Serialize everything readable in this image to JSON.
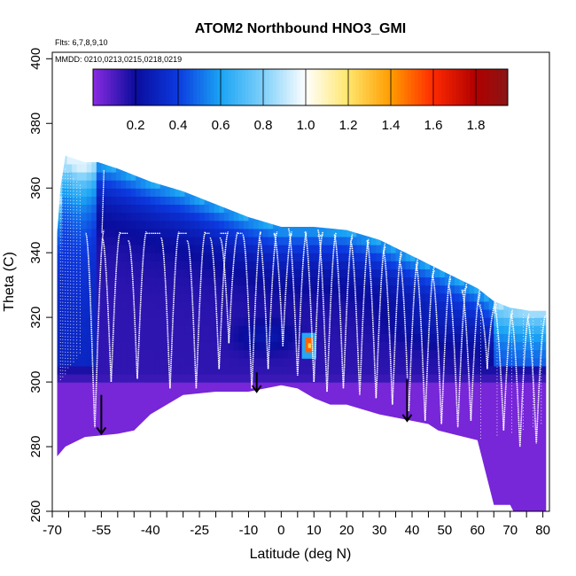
{
  "chart_data": {
    "type": "heatmap",
    "title": "ATOM2 Northbound HNO3_GMI",
    "flights_label": "Flts: 6,7,8,9,10",
    "dates_label": "MMDD: 0210,0213,0215,0218,0219",
    "xlabel": "Latitude (deg N)",
    "ylabel": "Theta (C)",
    "xlim": [
      -70,
      82
    ],
    "ylim": [
      260,
      402
    ],
    "x_ticks": [
      -70,
      -55,
      -40,
      -25,
      -10,
      0,
      10,
      20,
      30,
      40,
      50,
      60,
      70,
      80
    ],
    "x_tick_labels": [
      "-70",
      "-55",
      "-40",
      "-25",
      "-10",
      "0",
      "10",
      "20",
      "30",
      "40",
      "50",
      "60",
      "70",
      "80"
    ],
    "x_minor_ticks": [
      -65,
      -60,
      -50,
      -45,
      -35,
      -30,
      -20,
      -15,
      -5,
      5,
      15,
      25,
      35,
      45,
      55,
      65,
      75
    ],
    "y_ticks": [
      260,
      280,
      300,
      320,
      340,
      360,
      380,
      400
    ],
    "y_tick_labels": [
      "260",
      "280",
      "300",
      "320",
      "340",
      "360",
      "380",
      "400"
    ],
    "colorbar": {
      "range": [
        0,
        1.95
      ],
      "ticks": [
        0.2,
        0.4,
        0.6,
        0.8,
        1.0,
        1.2,
        1.4,
        1.6,
        1.8
      ],
      "tick_labels": [
        "0.2",
        "0.4",
        "0.6",
        "0.8",
        "1.0",
        "1.2",
        "1.4",
        "1.6",
        "1.8"
      ],
      "stops": [
        {
          "v": 0.0,
          "c": "#8a2be2"
        },
        {
          "v": 0.2,
          "c": "#0a0c9c"
        },
        {
          "v": 0.4,
          "c": "#0c3ae0"
        },
        {
          "v": 0.6,
          "c": "#1aa4f4"
        },
        {
          "v": 0.8,
          "c": "#7fd0fa"
        },
        {
          "v": 1.0,
          "c": "#ffffff"
        },
        {
          "v": 1.2,
          "c": "#ffe66b"
        },
        {
          "v": 1.4,
          "c": "#ff9c00"
        },
        {
          "v": 1.6,
          "c": "#ff2a00"
        },
        {
          "v": 1.8,
          "c": "#b00000"
        },
        {
          "v": 1.95,
          "c": "#8a1515"
        }
      ]
    },
    "domain_top": [
      [
        -68.5,
        346
      ],
      [
        -67.5,
        360
      ],
      [
        -66,
        370
      ],
      [
        -63,
        369
      ],
      [
        -60,
        368
      ],
      [
        -56,
        368
      ],
      [
        -50,
        366
      ],
      [
        -45,
        364
      ],
      [
        -40,
        362
      ],
      [
        -30,
        359
      ],
      [
        -20,
        355
      ],
      [
        -10,
        351
      ],
      [
        0,
        348
      ],
      [
        10,
        348
      ],
      [
        20,
        347
      ],
      [
        30,
        344
      ],
      [
        40,
        339
      ],
      [
        50,
        334
      ],
      [
        60,
        329
      ],
      [
        65,
        325
      ],
      [
        70,
        323
      ],
      [
        76,
        322
      ],
      [
        81,
        322
      ]
    ],
    "domain_bottom": [
      [
        -68.5,
        277
      ],
      [
        -66,
        280
      ],
      [
        -60,
        283
      ],
      [
        -50,
        284
      ],
      [
        -45,
        285
      ],
      [
        -40,
        290
      ],
      [
        -30,
        296
      ],
      [
        -20,
        297
      ],
      [
        -10,
        297
      ],
      [
        0,
        299
      ],
      [
        5,
        298
      ],
      [
        10,
        295
      ],
      [
        15,
        293
      ],
      [
        20,
        293
      ],
      [
        30,
        290
      ],
      [
        40,
        288
      ],
      [
        45,
        287
      ],
      [
        48,
        285
      ],
      [
        52,
        284
      ],
      [
        60,
        282
      ],
      [
        65,
        262
      ],
      [
        70,
        262
      ],
      [
        71,
        260
      ],
      [
        81,
        260
      ]
    ],
    "hotspot": {
      "x": 8.5,
      "y": 311,
      "value": 1.5
    },
    "profile_minima": [
      {
        "x": -57,
        "min": 286
      },
      {
        "x": -52,
        "min": 300
      },
      {
        "x": -44,
        "min": 301
      },
      {
        "x": -34,
        "min": 298
      },
      {
        "x": -26,
        "min": 298
      },
      {
        "x": -19,
        "min": 304
      },
      {
        "x": -16,
        "min": 312
      },
      {
        "x": -9,
        "min": 298
      },
      {
        "x": -4,
        "min": 304
      },
      {
        "x": 0.5,
        "min": 311
      },
      {
        "x": 5,
        "min": 302
      },
      {
        "x": 10,
        "min": 300
      },
      {
        "x": 14,
        "min": 297
      },
      {
        "x": 19,
        "min": 298
      },
      {
        "x": 24,
        "min": 296
      },
      {
        "x": 29,
        "min": 295
      },
      {
        "x": 34,
        "min": 293
      },
      {
        "x": 39,
        "min": 291
      },
      {
        "x": 44,
        "min": 288
      },
      {
        "x": 49,
        "min": 287
      },
      {
        "x": 54,
        "min": 286
      },
      {
        "x": 58,
        "min": 288
      },
      {
        "x": 63,
        "min": 304
      },
      {
        "x": 68,
        "min": 285
      },
      {
        "x": 73,
        "min": 280
      },
      {
        "x": 78,
        "min": 281
      }
    ],
    "arrows": [
      {
        "x": -55,
        "y_start": 296,
        "y_end": 284
      },
      {
        "x": -7.5,
        "y_start": 303,
        "y_end": 297
      },
      {
        "x": 38.5,
        "y_start": 301,
        "y_end": 288
      }
    ]
  }
}
